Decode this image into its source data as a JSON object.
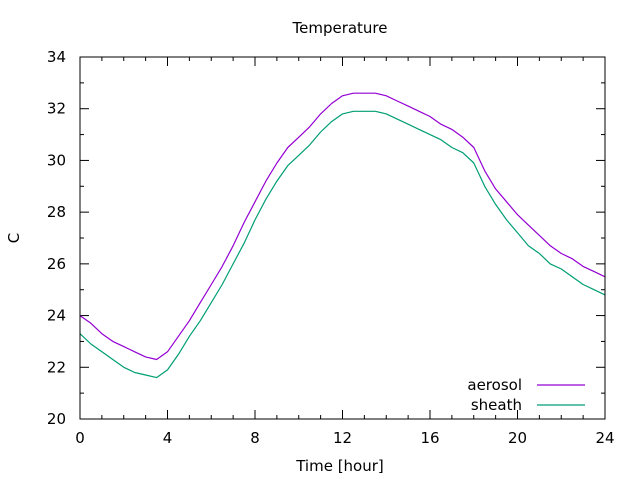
{
  "chart_data": {
    "type": "line",
    "title": "Temperature",
    "xlabel": "Time [hour]",
    "ylabel": "C",
    "xlim": [
      0,
      24
    ],
    "ylim": [
      20,
      34
    ],
    "xticks": [
      0,
      4,
      8,
      12,
      16,
      20,
      24
    ],
    "yticks": [
      20,
      22,
      24,
      26,
      28,
      30,
      32,
      34
    ],
    "grid": false,
    "legend_position": "bottom-right",
    "series": [
      {
        "name": "aerosol",
        "color": "#9400d3",
        "x": [
          0,
          0.5,
          1,
          1.5,
          2,
          2.5,
          3,
          3.5,
          4,
          4.5,
          5,
          5.5,
          6,
          6.5,
          7,
          7.5,
          8,
          8.5,
          9,
          9.5,
          10,
          10.5,
          11,
          11.5,
          12,
          12.5,
          13,
          13.5,
          14,
          14.5,
          15,
          15.5,
          16,
          16.5,
          17,
          17.5,
          18,
          18.5,
          19,
          19.5,
          20,
          20.5,
          21,
          21.5,
          22,
          22.5,
          23,
          23.5,
          24
        ],
        "y": [
          24.0,
          23.7,
          23.3,
          23.0,
          22.8,
          22.6,
          22.4,
          22.3,
          22.6,
          23.2,
          23.8,
          24.5,
          25.2,
          25.9,
          26.7,
          27.6,
          28.4,
          29.2,
          29.9,
          30.5,
          30.9,
          31.3,
          31.8,
          32.2,
          32.5,
          32.6,
          32.6,
          32.6,
          32.5,
          32.3,
          32.1,
          31.9,
          31.7,
          31.4,
          31.2,
          30.9,
          30.5,
          29.6,
          28.9,
          28.4,
          27.9,
          27.5,
          27.1,
          26.7,
          26.4,
          26.2,
          25.9,
          25.7,
          25.5
        ]
      },
      {
        "name": "sheath",
        "color": "#009e73",
        "x": [
          0,
          0.5,
          1,
          1.5,
          2,
          2.5,
          3,
          3.5,
          4,
          4.5,
          5,
          5.5,
          6,
          6.5,
          7,
          7.5,
          8,
          8.5,
          9,
          9.5,
          10,
          10.5,
          11,
          11.5,
          12,
          12.5,
          13,
          13.5,
          14,
          14.5,
          15,
          15.5,
          16,
          16.5,
          17,
          17.5,
          18,
          18.5,
          19,
          19.5,
          20,
          20.5,
          21,
          21.5,
          22,
          22.5,
          23,
          23.5,
          24
        ],
        "y": [
          23.3,
          22.9,
          22.6,
          22.3,
          22.0,
          21.8,
          21.7,
          21.6,
          21.9,
          22.5,
          23.2,
          23.8,
          24.5,
          25.2,
          26.0,
          26.8,
          27.7,
          28.5,
          29.2,
          29.8,
          30.2,
          30.6,
          31.1,
          31.5,
          31.8,
          31.9,
          31.9,
          31.9,
          31.8,
          31.6,
          31.4,
          31.2,
          31.0,
          30.8,
          30.5,
          30.3,
          29.9,
          29.0,
          28.3,
          27.7,
          27.2,
          26.7,
          26.4,
          26.0,
          25.8,
          25.5,
          25.2,
          25.0,
          24.8
        ]
      }
    ]
  }
}
